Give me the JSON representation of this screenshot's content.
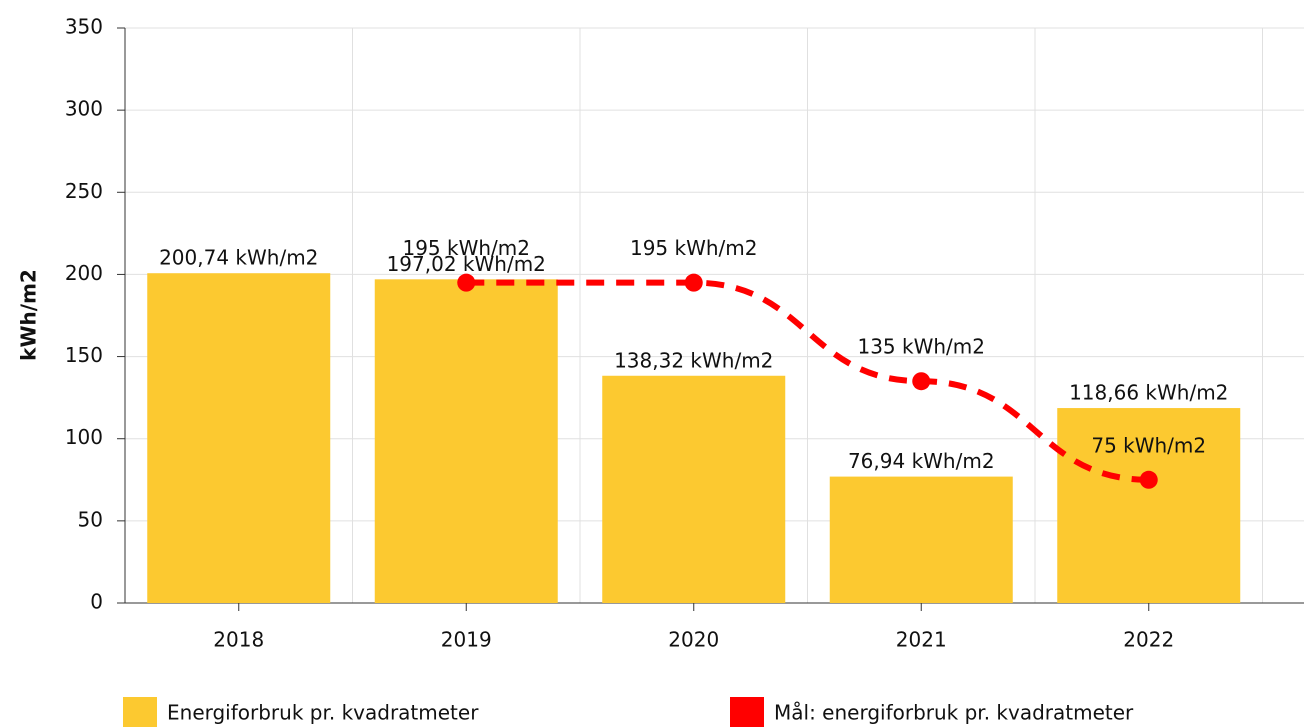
{
  "chart_data": {
    "type": "bar",
    "ylabel": "kWh/m2",
    "categories": [
      "2018",
      "2019",
      "2020",
      "2021",
      "2022"
    ],
    "ylim": [
      0,
      350
    ],
    "yticks": [
      0,
      50,
      100,
      150,
      200,
      250,
      300,
      350
    ],
    "grid": true,
    "series": [
      {
        "name": "Energiforbruk pr. kvadratmeter",
        "type": "bar",
        "color": "#fcc930",
        "values": [
          200.74,
          197.02,
          138.32,
          76.94,
          118.66
        ],
        "value_labels": [
          "200,74 kWh/m2",
          "197,02 kWh/m2",
          "138,32 kWh/m2",
          "76,94 kWh/m2",
          "118,66 kWh/m2"
        ]
      },
      {
        "name": "Mål: energiforbruk pr. kvadratmeter",
        "type": "line",
        "color": "#ff0000",
        "values": [
          null,
          195,
          195,
          135,
          75
        ],
        "value_labels": [
          null,
          "195 kWh/m2",
          "195 kWh/m2",
          "135 kWh/m2",
          "75 kWh/m2"
        ]
      }
    ]
  }
}
